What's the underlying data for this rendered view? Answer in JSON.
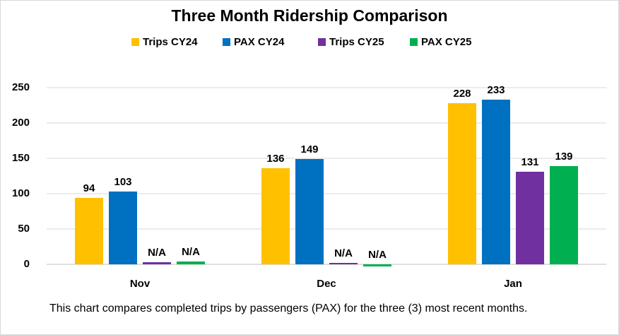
{
  "chart_data": {
    "type": "bar",
    "title": "Three Month Ridership Comparison",
    "categories": [
      "Nov",
      "Dec",
      "Jan"
    ],
    "series": [
      {
        "name": "Trips CY24",
        "color": "#FFC000",
        "values": [
          94,
          136,
          228
        ]
      },
      {
        "name": "PAX CY24",
        "color": "#0070C0",
        "values": [
          103,
          149,
          233
        ]
      },
      {
        "name": "Trips CY25",
        "color": "#7030A0",
        "values": [
          3,
          2,
          131
        ],
        "value_labels": [
          "N/A",
          "N/A",
          "131"
        ]
      },
      {
        "name": "PAX CY25",
        "color": "#00B050",
        "values": [
          4,
          -3,
          139
        ],
        "value_labels": [
          "N/A",
          "N/A",
          "139"
        ]
      }
    ],
    "ylim": [
      0,
      250
    ],
    "yticks": [
      0,
      50,
      100,
      150,
      200,
      250
    ],
    "grid": true,
    "legend": "top",
    "caption": "This chart compares completed trips by passengers (PAX) for the three (3) most recent months."
  }
}
